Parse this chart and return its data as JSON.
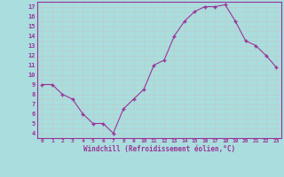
{
  "x": [
    0,
    1,
    2,
    3,
    4,
    5,
    6,
    7,
    8,
    9,
    10,
    11,
    12,
    13,
    14,
    15,
    16,
    17,
    18,
    19,
    20,
    21,
    22,
    23
  ],
  "y": [
    9,
    9,
    8,
    7.5,
    6,
    5,
    5,
    4,
    6.5,
    7.5,
    8.5,
    11,
    11.5,
    14,
    15.5,
    16.5,
    17,
    17,
    17.2,
    15.5,
    13.5,
    13,
    12,
    10.8
  ],
  "line_color": "#993399",
  "marker_color": "#993399",
  "bg_color": "#aadddd",
  "grid_color": "#bbcccc",
  "xlabel": "Windchill (Refroidissement éolien,°C)",
  "xlabel_color": "#993399",
  "tick_color": "#993399",
  "spine_color": "#993399",
  "ylim": [
    3.5,
    17.5
  ],
  "xlim": [
    -0.5,
    23.5
  ],
  "yticks": [
    4,
    5,
    6,
    7,
    8,
    9,
    10,
    11,
    12,
    13,
    14,
    15,
    16,
    17
  ],
  "xticks": [
    0,
    1,
    2,
    3,
    4,
    5,
    6,
    7,
    8,
    9,
    10,
    11,
    12,
    13,
    14,
    15,
    16,
    17,
    18,
    19,
    20,
    21,
    22,
    23
  ],
  "minor_yticks": [
    3.5,
    4.0,
    4.5,
    5.0,
    5.5,
    6.0,
    6.5,
    7.0,
    7.5,
    8.0,
    8.5,
    9.0,
    9.5,
    10.0,
    10.5,
    11.0,
    11.5,
    12.0,
    12.5,
    13.0,
    13.5,
    14.0,
    14.5,
    15.0,
    15.5,
    16.0,
    16.5,
    17.0,
    17.5
  ]
}
